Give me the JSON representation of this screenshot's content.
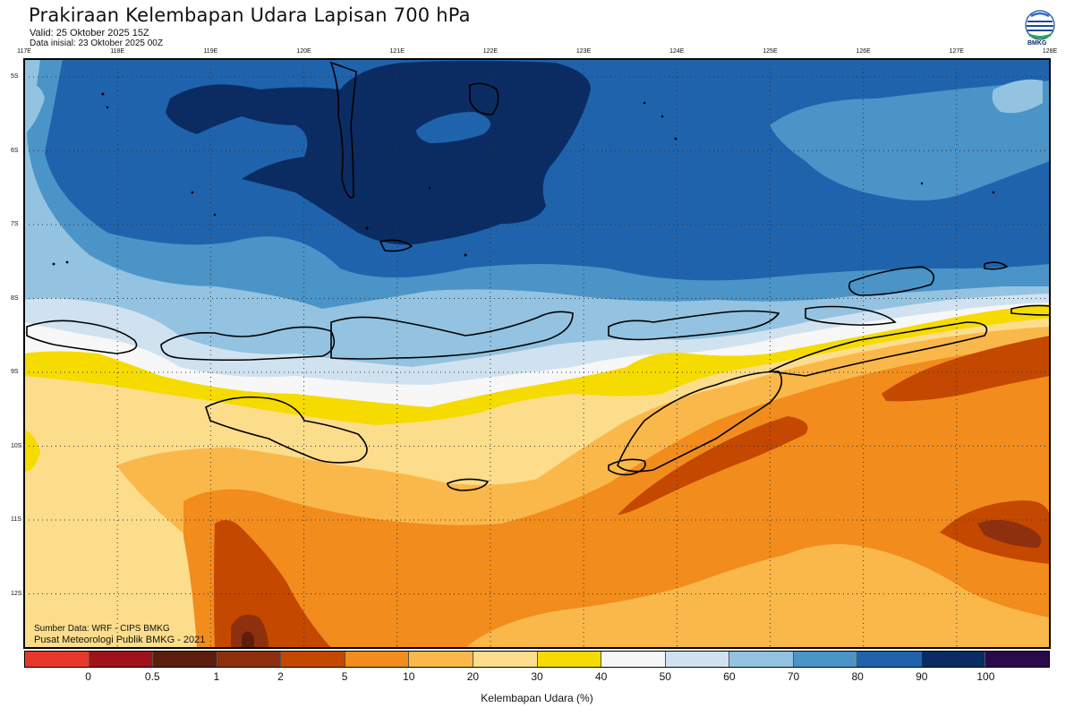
{
  "header": {
    "title": "Prakiraan Kelembapan Udara Lapisan 700 hPa",
    "valid": "Valid: 25 Oktober 2025 15Z",
    "initial": "Data inisial: 23 Oktober 2025 00Z",
    "logo_text": "BMKG"
  },
  "axes": {
    "lon_labels": [
      "117E",
      "118E",
      "119E",
      "120E",
      "121E",
      "122E",
      "123E",
      "124E",
      "125E",
      "126E",
      "127E",
      "128E"
    ],
    "lat_labels": [
      "5S",
      "6S",
      "7S",
      "8S",
      "9S",
      "10S",
      "11S",
      "12S"
    ]
  },
  "credits": {
    "line1": "Sumber Data: WRF - CIPS BMKG",
    "line2": "Pusat Meteorologi Publik BMKG - 2021"
  },
  "legend": {
    "colors": [
      "#e8372b",
      "#a01219",
      "#5e1e0e",
      "#8e300e",
      "#c44800",
      "#f28c1c",
      "#fbb84a",
      "#fcdd8c",
      "#f6db00",
      "#f7f7f7",
      "#d0e2f0",
      "#93c3e0",
      "#4a94c8",
      "#1f63ad",
      "#0b2c62",
      "#2a0a4a"
    ],
    "ticks": [
      "0",
      "0.5",
      "1",
      "2",
      "5",
      "10",
      "20",
      "30",
      "40",
      "50",
      "60",
      "70",
      "80",
      "90",
      "100"
    ],
    "label": "Kelembapan Udara (%)"
  },
  "palette": {
    "c100": "#0b2c62",
    "c90": "#1f63ad",
    "c80": "#4a94c8",
    "c70": "#93c3e0",
    "c60": "#d0e2f0",
    "c50": "#f7f7f7",
    "c40": "#f6db00",
    "c30": "#fcdd8c",
    "c20": "#fbb84a",
    "c10": "#f28c1c",
    "c5": "#c44800",
    "c2": "#8e300e"
  }
}
